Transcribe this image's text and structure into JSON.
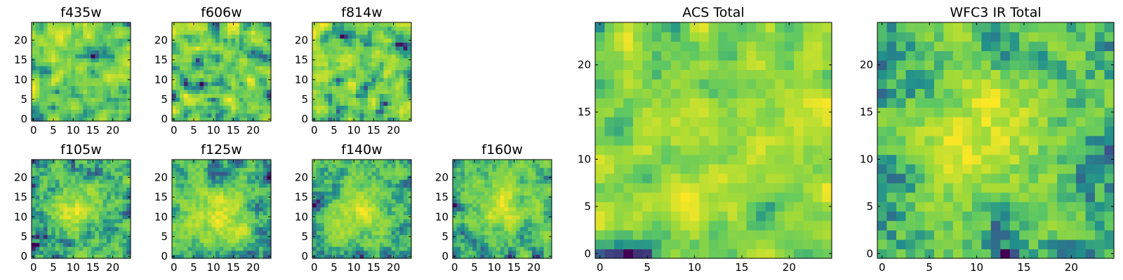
{
  "chart_data": [
    {
      "type": "heatmap",
      "title": "f435w",
      "grid_size": 25,
      "xticks": [
        0,
        5,
        10,
        15,
        20
      ],
      "yticks": [
        0,
        5,
        10,
        15,
        20
      ],
      "xlim": [
        0,
        24
      ],
      "ylim": [
        0,
        24
      ],
      "grid": false,
      "smoothness": 0.15,
      "seed": 11
    },
    {
      "type": "heatmap",
      "title": "f606w",
      "grid_size": 25,
      "xticks": [
        0,
        5,
        10,
        15,
        20
      ],
      "yticks": [
        0,
        5,
        10,
        15,
        20
      ],
      "xlim": [
        0,
        24
      ],
      "ylim": [
        0,
        24
      ],
      "grid": false,
      "smoothness": 0.15,
      "seed": 23
    },
    {
      "type": "heatmap",
      "title": "f814w",
      "grid_size": 25,
      "xticks": [
        0,
        5,
        10,
        15,
        20
      ],
      "yticks": [
        0,
        5,
        10,
        15,
        20
      ],
      "xlim": [
        0,
        24
      ],
      "ylim": [
        0,
        24
      ],
      "grid": false,
      "smoothness": 0.15,
      "seed": 37
    },
    {
      "type": "heatmap",
      "title": "f105w",
      "grid_size": 25,
      "xticks": [
        0,
        5,
        10,
        15,
        20
      ],
      "yticks": [
        0,
        5,
        10,
        15,
        20
      ],
      "xlim": [
        0,
        24
      ],
      "ylim": [
        0,
        24
      ],
      "grid": false,
      "smoothness": 0.55,
      "peak": [
        11,
        12
      ],
      "seed": 41
    },
    {
      "type": "heatmap",
      "title": "f125w",
      "grid_size": 25,
      "xticks": [
        0,
        5,
        10,
        15,
        20
      ],
      "yticks": [
        0,
        5,
        10,
        15,
        20
      ],
      "xlim": [
        0,
        24
      ],
      "ylim": [
        0,
        24
      ],
      "grid": false,
      "smoothness": 0.55,
      "peak": [
        12,
        10
      ],
      "seed": 53
    },
    {
      "type": "heatmap",
      "title": "f140w",
      "grid_size": 25,
      "xticks": [
        0,
        5,
        10,
        15,
        20
      ],
      "yticks": [
        0,
        5,
        10,
        15,
        20
      ],
      "xlim": [
        0,
        24
      ],
      "ylim": [
        0,
        24
      ],
      "grid": false,
      "smoothness": 0.55,
      "peak": [
        11,
        12
      ],
      "seed": 67
    },
    {
      "type": "heatmap",
      "title": "f160w",
      "grid_size": 25,
      "xticks": [
        0,
        5,
        10,
        15,
        20
      ],
      "yticks": [
        0,
        5,
        10,
        15,
        20
      ],
      "xlim": [
        0,
        24
      ],
      "ylim": [
        0,
        24
      ],
      "grid": false,
      "smoothness": 0.5,
      "peak": [
        12,
        13
      ],
      "seed": 79
    },
    {
      "type": "heatmap",
      "title": "ACS Total",
      "grid_size": 25,
      "xticks": [
        0,
        5,
        10,
        15,
        20
      ],
      "yticks": [
        0,
        5,
        10,
        15,
        20
      ],
      "xlim": [
        0,
        24
      ],
      "ylim": [
        0,
        24
      ],
      "grid": false,
      "smoothness": 0.3,
      "seed": 97
    },
    {
      "type": "heatmap",
      "title": "WFC3 IR Total",
      "grid_size": 25,
      "xticks": [
        0,
        5,
        10,
        15,
        20
      ],
      "yticks": [
        0,
        5,
        10,
        15,
        20
      ],
      "xlim": [
        0,
        24
      ],
      "ylim": [
        0,
        24
      ],
      "grid": false,
      "smoothness": 0.8,
      "peak": [
        12,
        13
      ],
      "seed": 101
    }
  ],
  "colormap": [
    "#440154",
    "#3b528b",
    "#21908c",
    "#5dc863",
    "#a5db36",
    "#fde725"
  ]
}
